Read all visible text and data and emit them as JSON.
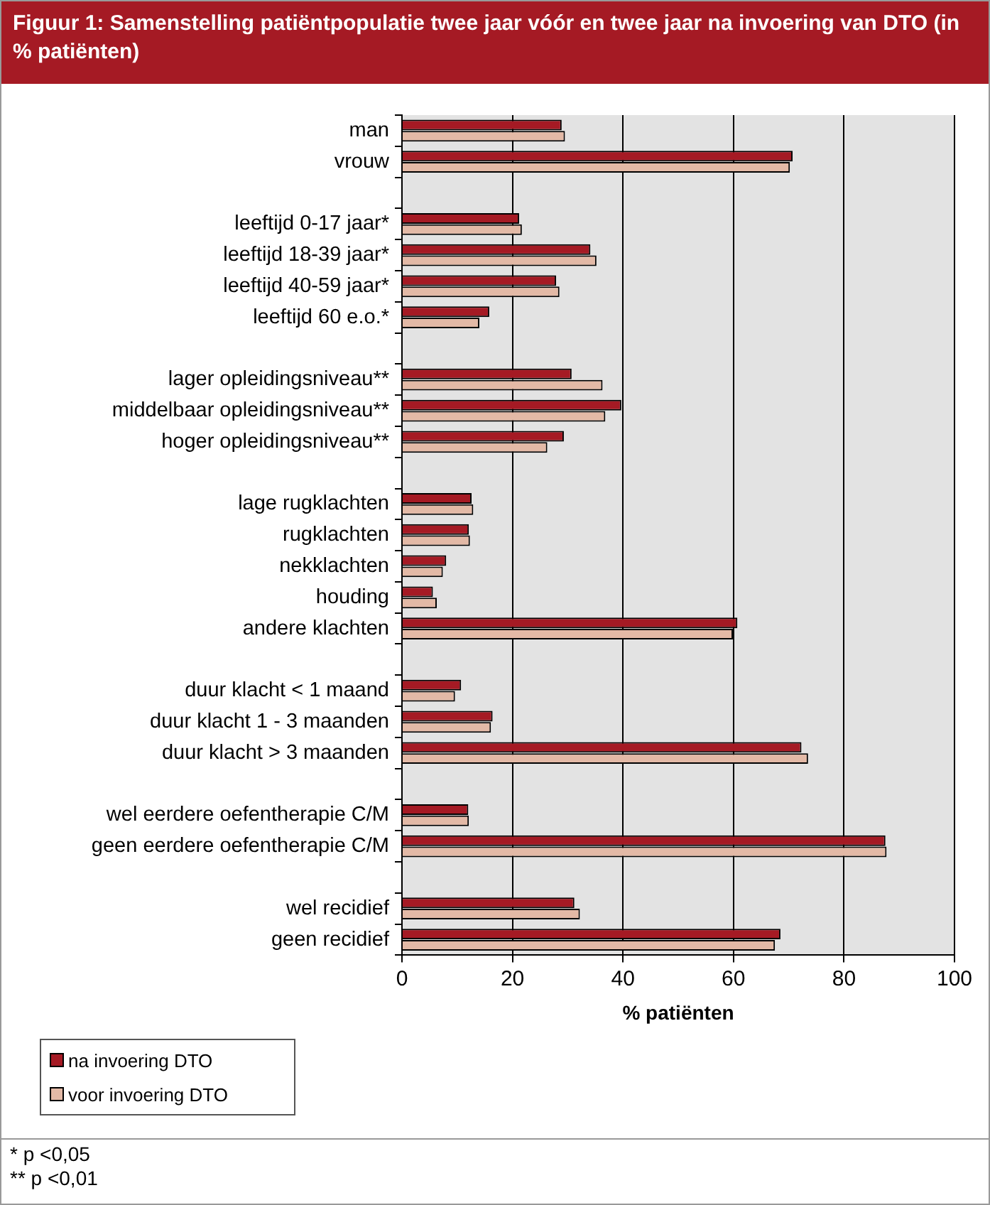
{
  "chart_data": {
    "type": "bar",
    "orientation": "horizontal",
    "title": "Figuur 1: Samenstelling patiëntpopulatie twee jaar vóór en twee jaar na invoering van DTO (in % patiënten)",
    "xlabel": "% patiënten",
    "categories": [
      "man",
      "vrouw",
      null,
      "leeftijd 0-17 jaar*",
      "leeftijd 18-39 jaar*",
      "leeftijd 40-59 jaar*",
      "leeftijd 60 e.o.*",
      null,
      "lager opleidingsniveau**",
      "middelbaar opleidingsniveau**",
      "hoger opleidingsniveau**",
      null,
      "lage rugklachten",
      "rugklachten",
      "nekklachten",
      "houding",
      "andere klachten",
      null,
      "duur klacht < 1 maand",
      "duur klacht 1 - 3 maanden",
      "duur klacht > 3 maanden",
      null,
      "wel eerdere oefentherapie C/M",
      "geen eerdere oefentherapie C/M",
      null,
      "wel recidief",
      "geen recidief"
    ],
    "series": [
      {
        "name": "na invoering DTO",
        "color": "#a51a24",
        "values": [
          28.9,
          70.7,
          null,
          21.2,
          34.1,
          27.9,
          15.8,
          null,
          30.7,
          39.7,
          29.3,
          null,
          12.6,
          12.1,
          8.0,
          5.6,
          60.7,
          null,
          10.7,
          16.4,
          72.3,
          null,
          12.0,
          87.5,
          null,
          31.2,
          68.5
        ]
      },
      {
        "name": "voor invoering DTO",
        "color": "#e3b9a6",
        "values": [
          29.5,
          70.2,
          null,
          21.7,
          35.2,
          28.5,
          14.0,
          null,
          36.3,
          36.8,
          26.3,
          null,
          12.9,
          12.3,
          7.4,
          6.3,
          59.9,
          null,
          9.6,
          16.1,
          73.5,
          null,
          12.1,
          87.7,
          null,
          32.2,
          67.5
        ]
      }
    ],
    "xlim": [
      0,
      100
    ],
    "xticks": [
      0,
      20,
      40,
      60,
      80,
      100
    ],
    "grid": "x",
    "legend": "bottom left",
    "annotations": [
      "* p <0,05",
      "** p <0,01"
    ]
  }
}
